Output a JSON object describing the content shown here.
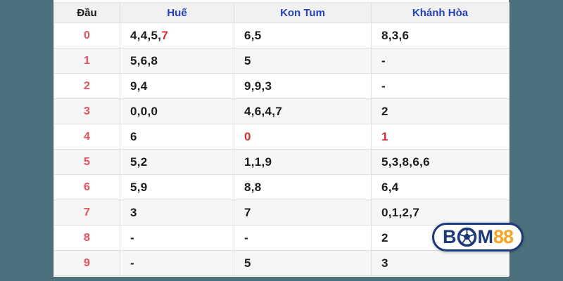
{
  "colors": {
    "background": "#4d707d",
    "header_blue": "#2240c8",
    "label_red": "#ee4e58",
    "value_red": "#de2b33",
    "text": "#1d1d1d",
    "navy": "#1c3a7a",
    "gold": "#f8a41f"
  },
  "table": {
    "headers": [
      {
        "label": "Đầu"
      },
      {
        "label": "Huế"
      },
      {
        "label": "Kon Tum"
      },
      {
        "label": "Khánh Hòa"
      }
    ],
    "rows": [
      {
        "dau": "0",
        "values": [
          {
            "text": "4,4,5,7",
            "red": "7"
          },
          {
            "text": "6,5"
          },
          {
            "text": "8,3,6"
          }
        ]
      },
      {
        "dau": "1",
        "values": [
          {
            "text": "5,6,8"
          },
          {
            "text": "5"
          },
          {
            "text": "-"
          }
        ]
      },
      {
        "dau": "2",
        "values": [
          {
            "text": "9,4"
          },
          {
            "text": "9,9,3"
          },
          {
            "text": "-"
          }
        ]
      },
      {
        "dau": "3",
        "values": [
          {
            "text": "0,0,0"
          },
          {
            "text": "4,6,4,7"
          },
          {
            "text": "2"
          }
        ]
      },
      {
        "dau": "4",
        "values": [
          {
            "text": "6"
          },
          {
            "text": "0",
            "red": "0"
          },
          {
            "text": "1",
            "red": "1"
          }
        ]
      },
      {
        "dau": "5",
        "values": [
          {
            "text": "5,2"
          },
          {
            "text": "1,1,9"
          },
          {
            "text": "5,3,8,6,6"
          }
        ]
      },
      {
        "dau": "6",
        "values": [
          {
            "text": "5,9"
          },
          {
            "text": "8,8"
          },
          {
            "text": "6,4"
          }
        ]
      },
      {
        "dau": "7",
        "values": [
          {
            "text": "3"
          },
          {
            "text": "7"
          },
          {
            "text": "0,1,2,7"
          }
        ]
      },
      {
        "dau": "8",
        "values": [
          {
            "text": "-"
          },
          {
            "text": "-"
          },
          {
            "text": "2"
          }
        ]
      },
      {
        "dau": "9",
        "values": [
          {
            "text": "-"
          },
          {
            "text": "5"
          },
          {
            "text": "3"
          }
        ]
      }
    ]
  },
  "logo": {
    "letter_b": "B",
    "letter_m": "M",
    "number": "88",
    "ball_icon": "soccer-ball"
  }
}
